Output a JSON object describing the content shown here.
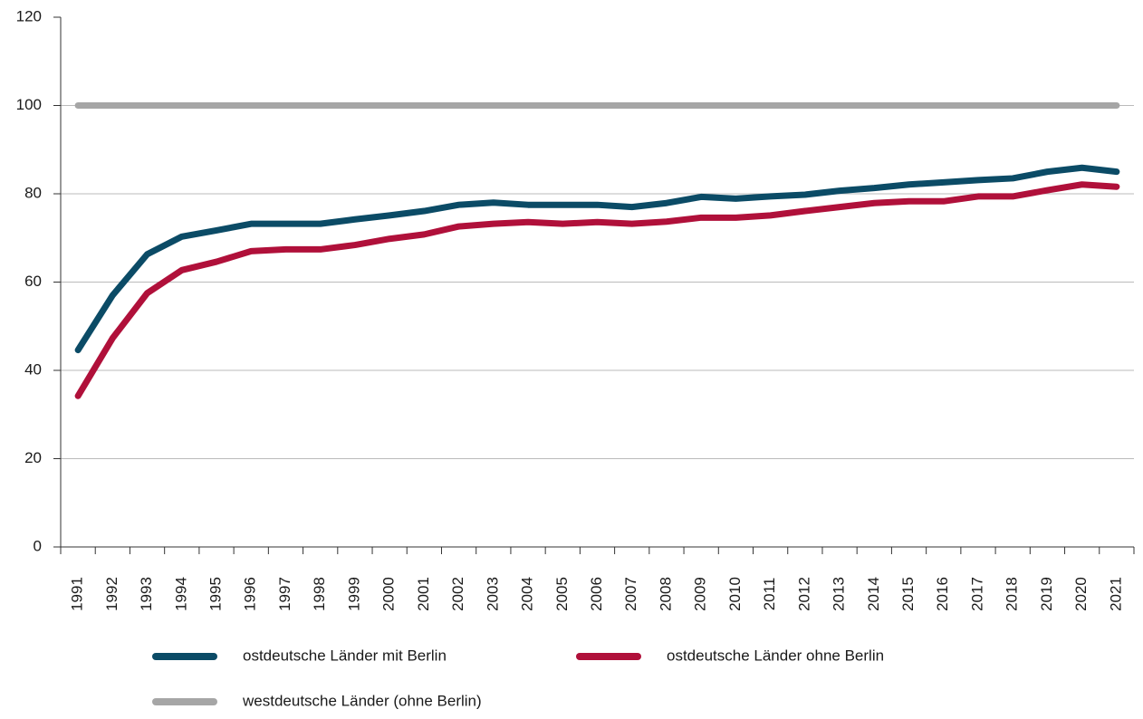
{
  "chart_data": {
    "type": "line",
    "categories": [
      "1991",
      "1992",
      "1993",
      "1994",
      "1995",
      "1996",
      "1997",
      "1998",
      "1999",
      "2000",
      "2001",
      "2002",
      "2003",
      "2004",
      "2005",
      "2006",
      "2007",
      "2008",
      "2009",
      "2010",
      "2011",
      "2012",
      "2013",
      "2014",
      "2015",
      "2016",
      "2017",
      "2018",
      "2019",
      "2020",
      "2021"
    ],
    "series": [
      {
        "name": "ostdeutsche Länder mit Berlin",
        "color": "#0b4b66",
        "values": [
          44.6,
          57,
          66.3,
          70.3,
          71.7,
          73.2,
          73.2,
          73.2,
          74.2,
          75.1,
          76.1,
          77.5,
          78,
          77.5,
          77.5,
          77.5,
          77,
          77.9,
          79.3,
          78.9,
          79.4,
          79.8,
          80.7,
          81.3,
          82.1,
          82.6,
          83.1,
          83.5,
          85,
          85.9,
          85
        ]
      },
      {
        "name": "ostdeutsche Länder ohne Berlin",
        "color": "#b0103a",
        "values": [
          34.2,
          47.3,
          57.5,
          62.7,
          64.6,
          67,
          67.4,
          67.4,
          68.4,
          69.8,
          70.8,
          72.6,
          73.2,
          73.6,
          73.2,
          73.6,
          73.2,
          73.7,
          74.6,
          74.6,
          75.1,
          76.1,
          77,
          77.9,
          78.3,
          78.3,
          79.4,
          79.4,
          80.8,
          82.1,
          81.6
        ]
      },
      {
        "name": "westdeutsche Länder (ohne Berlin)",
        "color": "#a6a6a6",
        "values": [
          100,
          100,
          100,
          100,
          100,
          100,
          100,
          100,
          100,
          100,
          100,
          100,
          100,
          100,
          100,
          100,
          100,
          100,
          100,
          100,
          100,
          100,
          100,
          100,
          100,
          100,
          100,
          100,
          100,
          100,
          100
        ]
      }
    ],
    "ylim": [
      0,
      120
    ],
    "yticks": [
      0,
      20,
      40,
      60,
      80,
      100,
      120
    ],
    "grid": true
  }
}
